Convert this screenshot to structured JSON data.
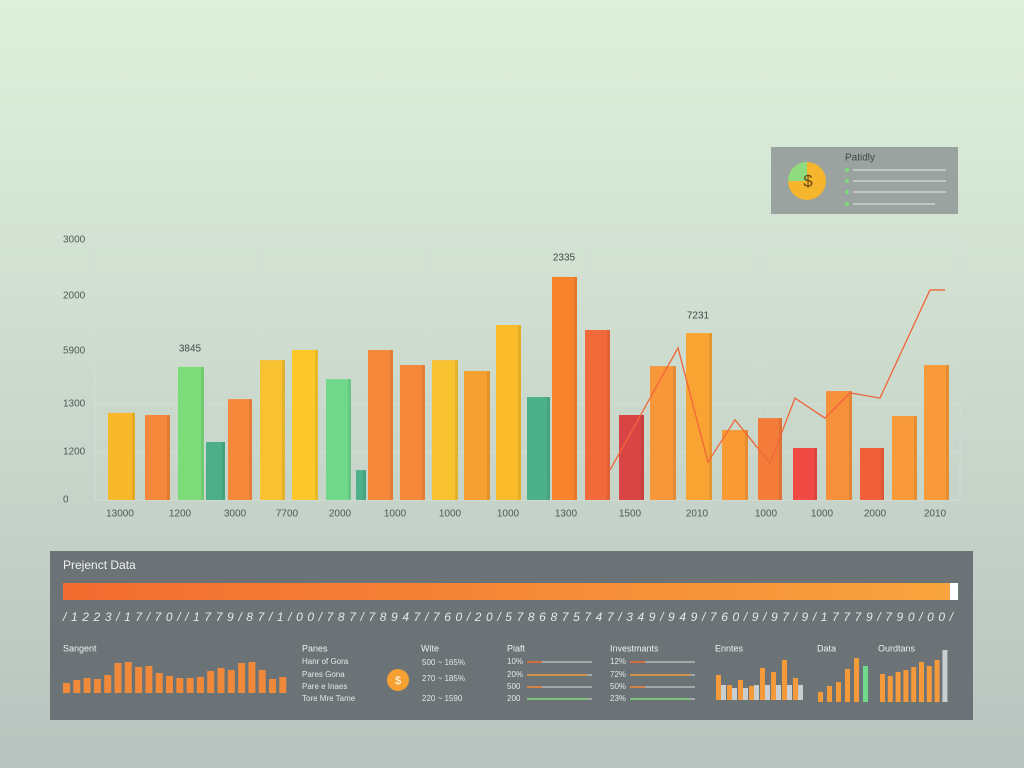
{
  "main_chart": {
    "type": "bar",
    "ylim": [
      0,
      100
    ],
    "y_labels": [
      "3000",
      "2000",
      "5900",
      "1300",
      "1200",
      "0"
    ],
    "x_labels": [
      "13000",
      "1200",
      "3000",
      "7700",
      "2000",
      "1000",
      "1000",
      "1000",
      "1300",
      "1500",
      "2010",
      "1000",
      "1000",
      "2000",
      "2010"
    ],
    "annotations": [
      "3845",
      "2335",
      "7231"
    ],
    "values": [
      33.5,
      32.7,
      51.2,
      22.3,
      38.8,
      53.8,
      57.7,
      46.5,
      11.5,
      57.7,
      51.9,
      53.8,
      49.6,
      67.3,
      39.6,
      85.8,
      65.4,
      32.7,
      51.5,
      64.2,
      26.9,
      31.5,
      20,
      41.9,
      20,
      32.3,
      51.9
    ],
    "colors": [
      "#f7b829",
      "#f5883a",
      "#7ddc7a",
      "#4caf8a",
      "#f5883a",
      "#f8c130",
      "#fbc72a",
      "#6fd88a",
      "#4cb08a",
      "#f5883a",
      "#f5883a",
      "#f8c130",
      "#f5a030",
      "#f9bb2a",
      "#4cb08a",
      "#f7832d",
      "#f26a3a",
      "#d94545",
      "#f7973a",
      "#f9a332",
      "#f99a35",
      "#f47c3a",
      "#ef4b44",
      "#f7903a",
      "#f05e3a",
      "#f99a3a",
      "#f99a3a"
    ],
    "line": {
      "color": "#f0663a",
      "values": [
        11.5,
        58.5,
        14.6,
        30.8,
        14.2,
        39.2,
        31.5,
        41.2,
        39.2,
        80.8,
        80.8
      ]
    }
  },
  "legend_card": {
    "title": "Patidly",
    "symbol": "$"
  },
  "panel": {
    "title": "Prejenct Data",
    "digits": "/ 1 2 2 3 / 1 7 / 7 0 / / 1 7 7 9 / 8 7 / 1 / 0 0 / 7 8 7 / 7 8 9 4 7 / 7 6 0 / 2 0 / 5 7 8 6 8 7 5 7 4 7 / 3 4 9 / 9 4 9 / 7 6 0 / 9 / 9 7 / 9 / 1 7 7 7 9 / 7 9 0 / 0 0 /",
    "sangent": {
      "title": "Sangent",
      "values": [
        10,
        13,
        15,
        14,
        18,
        30,
        31,
        26,
        27,
        20,
        17,
        15,
        15,
        16,
        22,
        25,
        23,
        30,
        31,
        23,
        14,
        16
      ]
    },
    "panes": {
      "title": "Panes",
      "items": [
        "Hanr of Gora",
        "Pares Gona",
        "Pare e Inaes",
        "Tore Mre Tame"
      ]
    },
    "wite": {
      "title": "Wite",
      "symbol": "$",
      "items": [
        "500 ~ 165%",
        "270 ~ 185%",
        "220 ~ 1590"
      ]
    },
    "piaft": {
      "title": "Piaft",
      "items": [
        "10%",
        "20%",
        "500",
        "200"
      ]
    },
    "investments": {
      "title": "Investmants",
      "items": [
        "12%",
        "72%",
        "50%",
        "23%"
      ]
    },
    "enntes": {
      "title": "Enntes",
      "values": [
        25,
        15,
        20,
        14,
        32,
        28,
        40,
        22
      ],
      "values2": [
        15,
        12,
        12,
        15,
        15,
        15,
        15,
        15
      ]
    },
    "data": {
      "title": "Data",
      "values": [
        10,
        16,
        20,
        33,
        44,
        36
      ]
    },
    "ourdtans": {
      "title": "Ourdtans",
      "values": [
        28,
        26,
        30,
        32,
        35,
        40,
        36,
        42,
        52
      ]
    }
  }
}
